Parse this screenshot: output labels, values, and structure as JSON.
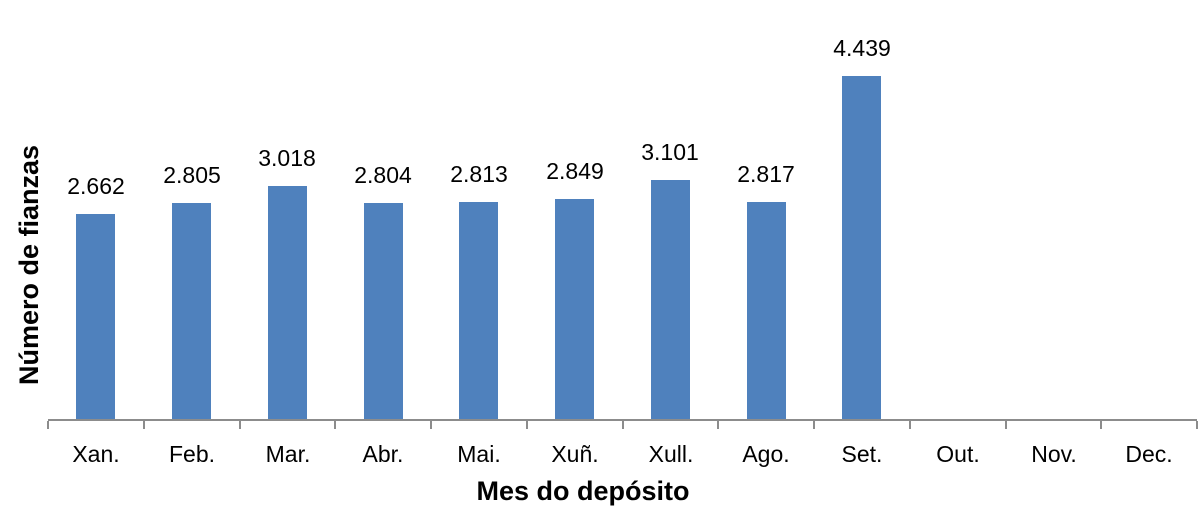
{
  "chart_data": {
    "type": "bar",
    "title": "",
    "xlabel": "Mes do depósito",
    "ylabel": "Número de fianzas",
    "categories": [
      "Xan.",
      "Feb.",
      "Mar.",
      "Abr.",
      "Mai.",
      "Xuñ.",
      "Xull.",
      "Ago.",
      "Set.",
      "Out.",
      "Nov.",
      "Dec."
    ],
    "values": [
      2662,
      2805,
      3018,
      2804,
      2813,
      2849,
      3101,
      2817,
      4439,
      null,
      null,
      null
    ],
    "value_labels": [
      "2.662",
      "2.805",
      "3.018",
      "2.804",
      "2.813",
      "2.849",
      "3.101",
      "2.817",
      "4.439",
      "",
      "",
      ""
    ],
    "ylim": [
      0,
      5300
    ],
    "grid": false,
    "legend": false,
    "bar_color": "#4F81BD",
    "axis_color": "#8C8C8C",
    "label_color": "#000000"
  }
}
